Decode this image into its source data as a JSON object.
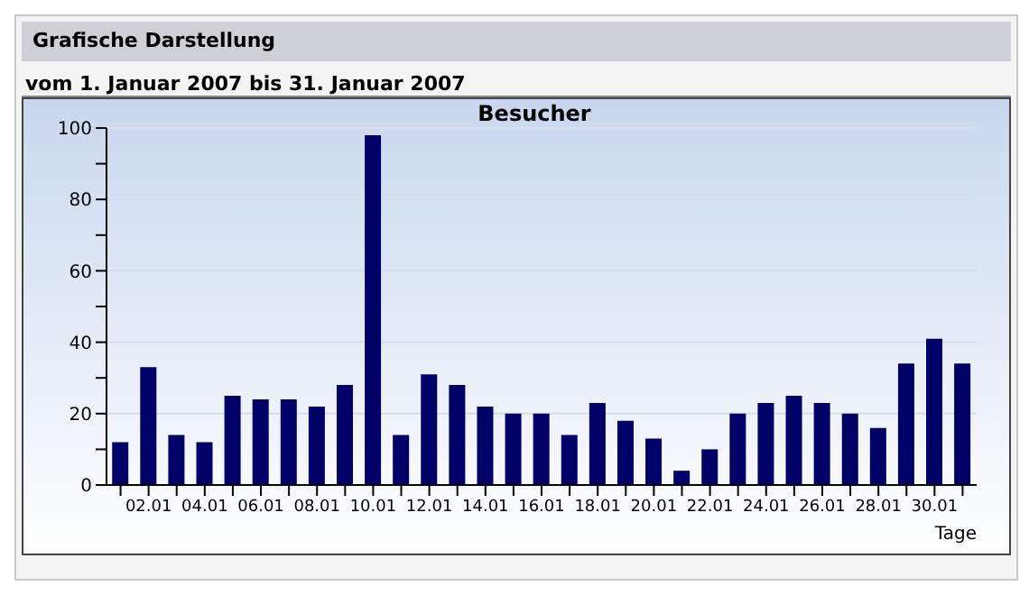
{
  "chart_data": {
    "type": "bar",
    "title": "Besucher",
    "subtitle": "vom 1. Januar 2007  bis  31. Januar 2007",
    "annotations": [
      "Grafische Darstellung"
    ],
    "xlabel": "Tage",
    "categories": [
      null,
      "02.01",
      null,
      "04.01",
      null,
      "06.01",
      null,
      "08.01",
      null,
      "10.01",
      null,
      "12.01",
      null,
      "14.01",
      null,
      "16.01",
      null,
      "18.01",
      null,
      "20.01",
      null,
      "22.01",
      null,
      "24.01",
      null,
      "26.01",
      null,
      "28.01",
      null,
      "30.01",
      null
    ],
    "values": [
      12,
      33,
      14,
      12,
      25,
      24,
      24,
      22,
      28,
      98,
      14,
      31,
      28,
      22,
      20,
      20,
      14,
      23,
      18,
      13,
      4,
      10,
      20,
      23,
      25,
      23,
      20,
      16,
      34,
      41,
      34
    ],
    "color": "#000066",
    "ylim": [
      0,
      100
    ],
    "yticks": [
      0,
      {
        "value": 10,
        "label": null
      },
      20,
      {
        "value": 30,
        "label": null
      },
      40,
      {
        "value": 50,
        "label": null
      },
      60,
      {
        "value": 70,
        "label": null
      },
      80,
      {
        "value": 90,
        "label": null
      },
      100
    ],
    "grid": "y"
  }
}
